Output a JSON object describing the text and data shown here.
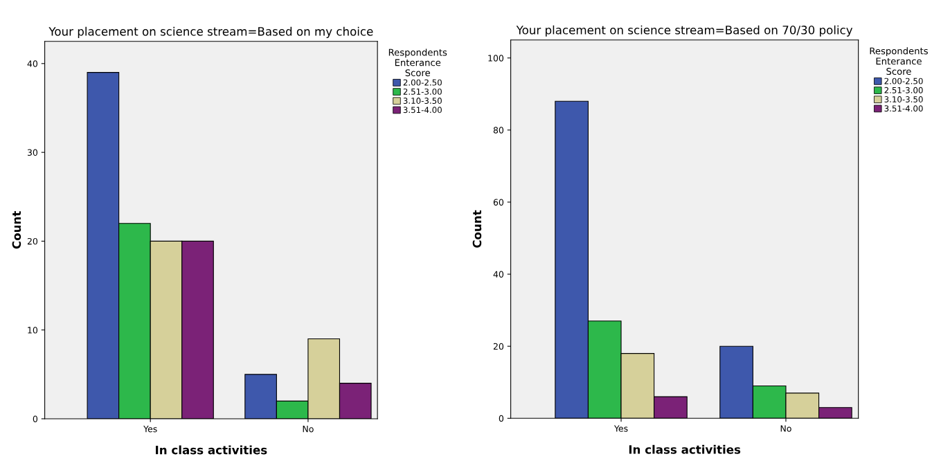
{
  "chart_data": [
    {
      "type": "bar",
      "title": "Your placement on science stream=Based on my choice",
      "xlabel": "In class activities",
      "ylabel": "Count",
      "legend_title": "Respondents\nEnterance\nScore",
      "categories": [
        "Yes",
        "No"
      ],
      "ylim": [
        0,
        42.5
      ],
      "yticks": [
        0,
        10,
        20,
        30,
        40
      ],
      "grid": false,
      "legend": "top right",
      "series": [
        {
          "name": "2.00-2.50",
          "color": "#3e58ac",
          "values": [
            39,
            5
          ]
        },
        {
          "name": "2.51-3.00",
          "color": "#2db84b",
          "values": [
            22,
            2
          ]
        },
        {
          "name": "3.10-3.50",
          "color": "#d6d09a",
          "values": [
            20,
            9
          ]
        },
        {
          "name": "3.51-4.00",
          "color": "#7b2277",
          "values": [
            20,
            4
          ]
        }
      ]
    },
    {
      "type": "bar",
      "title": "Your placement on science stream=Based on 70/30 policy",
      "xlabel": "In class activities",
      "ylabel": "Count",
      "legend_title": "Respondents\nEnterance\nScore",
      "categories": [
        "Yes",
        "No"
      ],
      "ylim": [
        0,
        105
      ],
      "yticks": [
        0,
        20,
        40,
        60,
        80,
        100
      ],
      "grid": false,
      "legend": "top right",
      "series": [
        {
          "name": "2.00-2.50",
          "color": "#3e58ac",
          "values": [
            88,
            20
          ]
        },
        {
          "name": "2.51-3.00",
          "color": "#2db84b",
          "values": [
            27,
            9
          ]
        },
        {
          "name": "3.10-3.50",
          "color": "#d6d09a",
          "values": [
            18,
            7
          ]
        },
        {
          "name": "3.51-4.00",
          "color": "#7b2277",
          "values": [
            6,
            3
          ]
        }
      ]
    }
  ]
}
